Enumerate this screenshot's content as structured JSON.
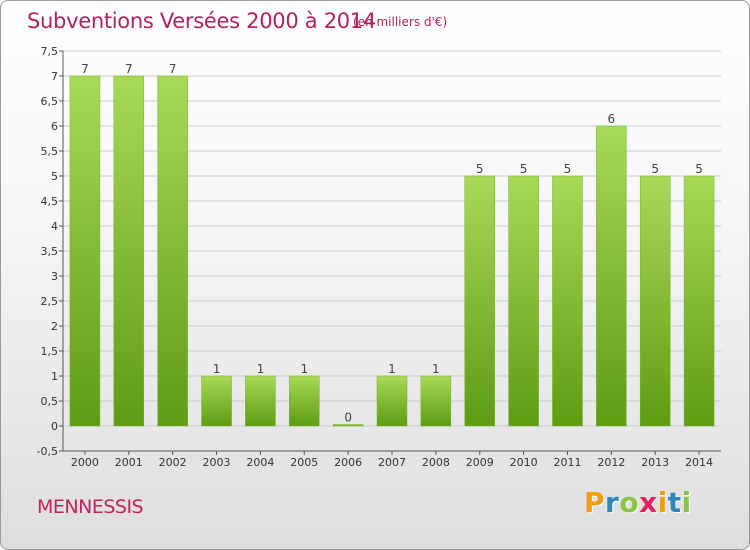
{
  "header": {
    "title": "Subventions Versées 2000 à 2014",
    "unit": "(en milliers d'€)"
  },
  "commune": "MENNESSIS",
  "logo": {
    "letters": [
      "P",
      "r",
      "o",
      "x",
      "i",
      "t",
      "i"
    ],
    "colors": [
      "#f39c12",
      "#2e86c1",
      "#8bc34a",
      "#e91e63",
      "#f39c12",
      "#2e86c1",
      "#8bc34a"
    ]
  },
  "colors": {
    "title": "#b0235c",
    "bar_light": "#a8d958",
    "bar_dark": "#5e9c12",
    "grid": "#cccccc"
  },
  "chart_data": {
    "type": "bar",
    "title": "Subventions Versées 2000 à 2014",
    "subtitle": "(en milliers d'€)",
    "categories": [
      "2000",
      "2001",
      "2002",
      "2003",
      "2004",
      "2005",
      "2006",
      "2007",
      "2008",
      "2009",
      "2010",
      "2011",
      "2012",
      "2013",
      "2014"
    ],
    "values": [
      7,
      7,
      7,
      1,
      1,
      1,
      0,
      1,
      1,
      5,
      5,
      5,
      6,
      5,
      5
    ],
    "data_labels": [
      "7",
      "7",
      "7",
      "1",
      "1",
      "1",
      "0",
      "1",
      "1",
      "5",
      "5",
      "5",
      "6",
      "5",
      "5"
    ],
    "ylim": [
      -0.5,
      7.5
    ],
    "yticks": [
      "-0,5",
      "0",
      "0,5",
      "1",
      "1,5",
      "2",
      "2,5",
      "3",
      "3,5",
      "4",
      "4,5",
      "5",
      "5,5",
      "6",
      "6,5",
      "7",
      "7,5"
    ],
    "ytick_values": [
      -0.5,
      0,
      0.5,
      1,
      1.5,
      2,
      2.5,
      3,
      3.5,
      4,
      4.5,
      5,
      5.5,
      6,
      6.5,
      7,
      7.5
    ],
    "grid": true,
    "legend": "none"
  }
}
